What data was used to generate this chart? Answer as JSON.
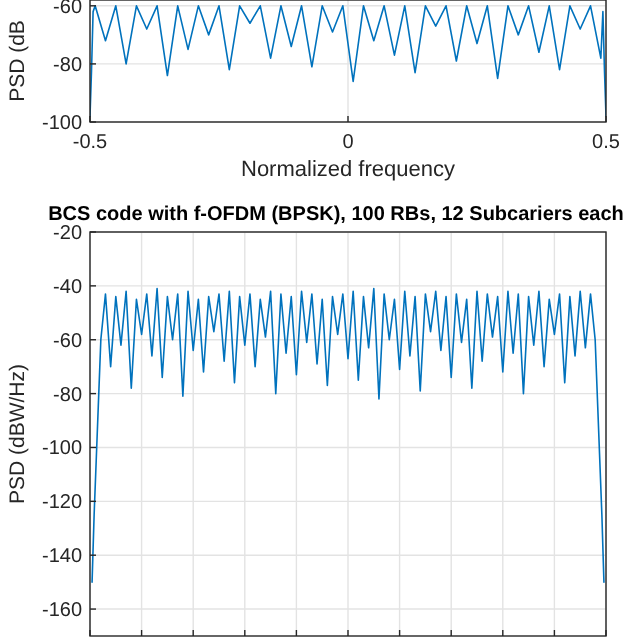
{
  "chart_data": [
    {
      "type": "line",
      "xlabel": "Normalized frequency",
      "ylabel": "PSD (dB",
      "xlim": [
        -0.5,
        0.5
      ],
      "ylim": [
        -100,
        -58
      ],
      "xticks": [
        -0.5,
        0,
        0.5
      ],
      "yticks": [
        -60,
        -80,
        -100
      ],
      "grid": true,
      "series": [
        {
          "color": "#0072bd",
          "x": [
            -0.5,
            -0.497,
            -0.494,
            -0.49,
            -0.47,
            -0.45,
            -0.43,
            -0.41,
            -0.39,
            -0.37,
            -0.35,
            -0.33,
            -0.31,
            -0.29,
            -0.27,
            -0.25,
            -0.23,
            -0.21,
            -0.19,
            -0.17,
            -0.15,
            -0.13,
            -0.11,
            -0.09,
            -0.07,
            -0.05,
            -0.03,
            -0.01,
            0.01,
            0.03,
            0.05,
            0.07,
            0.09,
            0.11,
            0.13,
            0.15,
            0.17,
            0.19,
            0.21,
            0.23,
            0.25,
            0.27,
            0.29,
            0.31,
            0.33,
            0.35,
            0.37,
            0.39,
            0.41,
            0.43,
            0.45,
            0.47,
            0.49,
            0.494,
            0.497,
            0.5
          ],
          "values": [
            -98,
            -82,
            -62,
            -60,
            -72,
            -60,
            -80,
            -60,
            -68,
            -60,
            -84,
            -60,
            -75,
            -60,
            -70,
            -60,
            -82,
            -60,
            -66,
            -60,
            -78,
            -60,
            -74,
            -60,
            -81,
            -60,
            -69,
            -60,
            -86,
            -60,
            -72,
            -60,
            -77,
            -60,
            -83,
            -60,
            -67,
            -60,
            -79,
            -60,
            -73,
            -60,
            -85,
            -60,
            -70,
            -60,
            -76,
            -60,
            -82,
            -60,
            -68,
            -60,
            -78,
            -62,
            -82,
            -98
          ]
        }
      ]
    },
    {
      "type": "line",
      "title": "BCS code with f-OFDM (BPSK), 100 RBs, 12 Subcariers each",
      "ylabel": "PSD (dBW/Hz)",
      "xlim": [
        -0.5,
        0.5
      ],
      "ylim": [
        -170,
        -20
      ],
      "xticks": [
        {
          "value": -0.5,
          "label": null
        },
        {
          "value": -0.4,
          "label": null
        },
        {
          "value": -0.3,
          "label": null
        },
        {
          "value": -0.2,
          "label": null
        },
        {
          "value": -0.1,
          "label": null
        },
        {
          "value": 0,
          "label": null
        },
        {
          "value": 0.1,
          "label": null
        },
        {
          "value": 0.2,
          "label": null
        },
        {
          "value": 0.3,
          "label": null
        },
        {
          "value": 0.4,
          "label": null
        },
        {
          "value": 0.5,
          "label": null
        }
      ],
      "yticks": [
        -20,
        -40,
        -60,
        -80,
        -100,
        -120,
        -140,
        -160
      ],
      "grid": true,
      "tick_labels": "y",
      "series": [
        {
          "color": "#0072bd",
          "x": [
            -0.496,
            -0.492,
            -0.488,
            -0.484,
            -0.479,
            -0.47,
            -0.46,
            -0.45,
            -0.44,
            -0.43,
            -0.42,
            -0.41,
            -0.4,
            -0.39,
            -0.38,
            -0.37,
            -0.36,
            -0.35,
            -0.34,
            -0.33,
            -0.32,
            -0.31,
            -0.3,
            -0.29,
            -0.28,
            -0.27,
            -0.26,
            -0.25,
            -0.24,
            -0.23,
            -0.22,
            -0.21,
            -0.2,
            -0.19,
            -0.18,
            -0.17,
            -0.16,
            -0.15,
            -0.14,
            -0.13,
            -0.12,
            -0.11,
            -0.1,
            -0.09,
            -0.08,
            -0.07,
            -0.06,
            -0.05,
            -0.04,
            -0.03,
            -0.02,
            -0.01,
            0,
            0.01,
            0.02,
            0.03,
            0.04,
            0.05,
            0.06,
            0.07,
            0.08,
            0.09,
            0.1,
            0.11,
            0.12,
            0.13,
            0.14,
            0.15,
            0.16,
            0.17,
            0.18,
            0.19,
            0.2,
            0.21,
            0.22,
            0.23,
            0.24,
            0.25,
            0.26,
            0.27,
            0.28,
            0.29,
            0.3,
            0.31,
            0.32,
            0.33,
            0.34,
            0.35,
            0.36,
            0.37,
            0.38,
            0.39,
            0.4,
            0.41,
            0.42,
            0.43,
            0.44,
            0.45,
            0.46,
            0.47,
            0.479,
            0.484,
            0.488,
            0.492,
            0.496
          ],
          "values": [
            -150,
            -125,
            -105,
            -85,
            -60,
            -43,
            -70,
            -44,
            -62,
            -42,
            -78,
            -45,
            -58,
            -43,
            -66,
            -41,
            -74,
            -44,
            -60,
            -43,
            -81,
            -42,
            -64,
            -45,
            -72,
            -44,
            -57,
            -43,
            -68,
            -42,
            -76,
            -44,
            -62,
            -43,
            -70,
            -45,
            -59,
            -42,
            -80,
            -43,
            -65,
            -44,
            -73,
            -42,
            -61,
            -43,
            -69,
            -45,
            -77,
            -44,
            -58,
            -43,
            -67,
            -42,
            -75,
            -44,
            -63,
            -41,
            -82,
            -43,
            -60,
            -45,
            -71,
            -42,
            -66,
            -44,
            -79,
            -43,
            -57,
            -42,
            -64,
            -44,
            -74,
            -43,
            -61,
            -45,
            -78,
            -42,
            -68,
            -43,
            -59,
            -44,
            -72,
            -42,
            -65,
            -43,
            -80,
            -44,
            -62,
            -42,
            -70,
            -45,
            -58,
            -43,
            -76,
            -44,
            -66,
            -42,
            -63,
            -43,
            -60,
            -85,
            -105,
            -125,
            -150
          ]
        }
      ]
    }
  ]
}
